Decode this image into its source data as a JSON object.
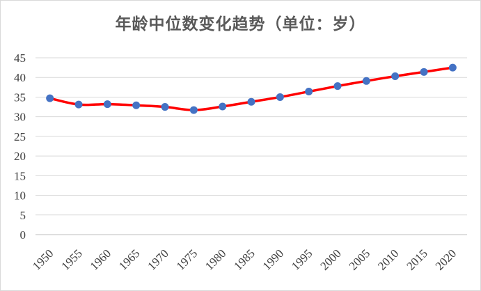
{
  "chart_data": {
    "type": "line",
    "title": "年龄中位数变化趋势（单位：岁）",
    "xlabel": "",
    "ylabel": "",
    "x": [
      "1950",
      "1955",
      "1960",
      "1965",
      "1970",
      "1975",
      "1980",
      "1985",
      "1990",
      "1995",
      "2000",
      "2005",
      "2010",
      "2015",
      "2020"
    ],
    "series": [
      {
        "values": [
          34.7,
          33.1,
          33.2,
          32.9,
          32.5,
          31.7,
          32.6,
          33.8,
          35.0,
          36.4,
          37.8,
          39.1,
          40.3,
          41.4,
          42.5
        ]
      }
    ],
    "yticks": [
      "0",
      "5",
      "10",
      "15",
      "20",
      "25",
      "30",
      "35",
      "40",
      "45"
    ],
    "ylim": [
      0,
      45
    ],
    "grid": true,
    "legend": "none",
    "colors": {
      "line": "#ff0000",
      "marker": "#4472c4",
      "grid": "#d9d9d9",
      "axis": "#bfbfbf"
    }
  }
}
